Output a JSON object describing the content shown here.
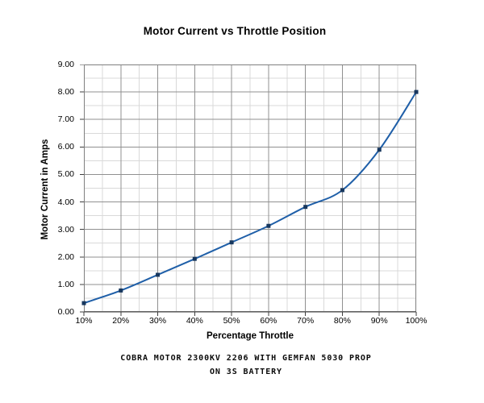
{
  "chart_data": {
    "type": "line",
    "title": "Motor Current vs Throttle Position",
    "xlabel": "Percentage Throttle",
    "ylabel": "Motor Current in Amps",
    "categories": [
      "10%",
      "20%",
      "30%",
      "40%",
      "50%",
      "60%",
      "70%",
      "80%",
      "90%",
      "100%"
    ],
    "series": [
      {
        "name": "Motor Current",
        "values": [
          0.32,
          0.78,
          1.35,
          1.93,
          2.53,
          3.13,
          3.82,
          4.43,
          5.9,
          8.0
        ]
      }
    ],
    "ylim": [
      0,
      9
    ],
    "y_major_step": 1,
    "y_minor_step": 0.5,
    "y_tick_labels": [
      "0.00",
      "1.00",
      "2.00",
      "3.00",
      "4.00",
      "5.00",
      "6.00",
      "7.00",
      "8.00",
      "9.00"
    ],
    "grid": "major and minor, both axes",
    "legend_position": "none",
    "marker_shape": "square",
    "line_smoothed": true,
    "colors": {
      "line": "#1F5FA8",
      "marker": "#17375E",
      "grid_major": "#909090",
      "grid_minor": "#D9D9D9",
      "plot_border": "#808080",
      "axis": "#3F3F3F",
      "background": "#FFFFFF"
    }
  },
  "caption": {
    "line1": "COBRA MOTOR 2300KV 2206 WITH GEMFAN 5030 PROP",
    "line2": "ON 3S BATTERY"
  }
}
